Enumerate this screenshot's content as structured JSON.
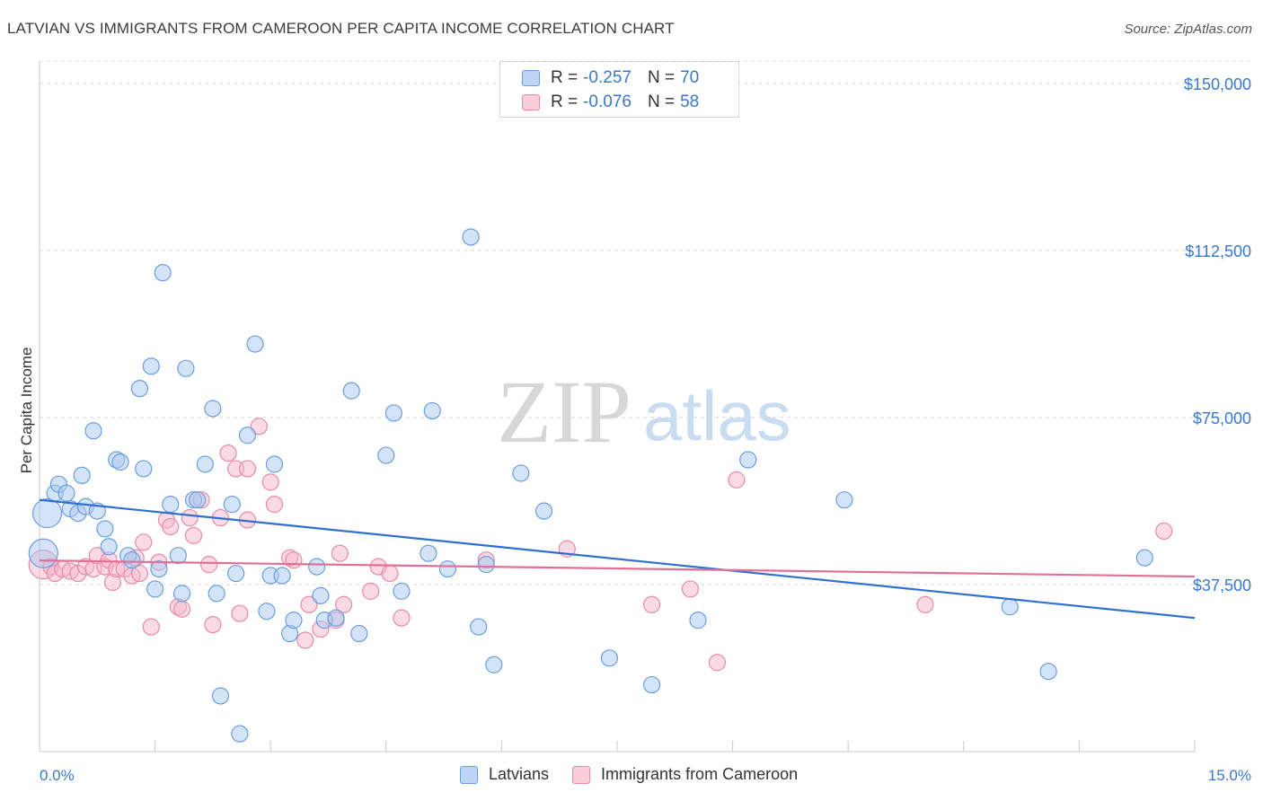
{
  "title": "LATVIAN VS IMMIGRANTS FROM CAMEROON PER CAPITA INCOME CORRELATION CHART",
  "source": "Source: ZipAtlas.com",
  "watermark": {
    "left": "ZIP",
    "right": "atlas"
  },
  "legend": {
    "rows": [
      {
        "r_label": "R =",
        "r_value": "-0.257",
        "n_label": "N =",
        "n_value": "70"
      },
      {
        "r_label": "R =",
        "r_value": "-0.076",
        "n_label": "N =",
        "n_value": "58"
      }
    ]
  },
  "bottom_legend": [
    "Latvians",
    "Immigrants from Cameroon"
  ],
  "colors": {
    "blue_fill": "#a9c8f0",
    "blue_stroke": "#6a9fdd",
    "blue_line": "#2f6fd0",
    "pink_fill": "#f6b8cc",
    "pink_stroke": "#e88aa8",
    "pink_line": "#e0709a",
    "tick_text": "#3a78c9",
    "grid": "#d8d8d8"
  },
  "chart_data": {
    "type": "scatter",
    "title": "LATVIAN VS IMMIGRANTS FROM CAMEROON PER CAPITA INCOME CORRELATION CHART",
    "xlabel": "",
    "ylabel": "Per Capita Income",
    "xlim": [
      0,
      15
    ],
    "ylim": [
      0,
      155000
    ],
    "x_tick_labels": [
      "0.0%",
      "15.0%"
    ],
    "y_ticks": [
      37500,
      75000,
      112500,
      150000
    ],
    "y_tick_labels": [
      "$37,500",
      "$75,000",
      "$112,500",
      "$150,000"
    ],
    "grid": "horizontal dashed",
    "legend_position": "top-center",
    "series": [
      {
        "name": "Latvians",
        "r": -0.257,
        "n": 70,
        "trend": {
          "x": [
            0,
            15
          ],
          "y": [
            56500,
            30000
          ]
        },
        "points": [
          {
            "x": 0.05,
            "y": 44500,
            "big": true
          },
          {
            "x": 0.1,
            "y": 53500,
            "big": true
          },
          {
            "x": 0.2,
            "y": 58000
          },
          {
            "x": 0.25,
            "y": 60000
          },
          {
            "x": 0.35,
            "y": 58000
          },
          {
            "x": 0.4,
            "y": 54500
          },
          {
            "x": 0.5,
            "y": 53500
          },
          {
            "x": 0.55,
            "y": 62000
          },
          {
            "x": 0.6,
            "y": 55000
          },
          {
            "x": 0.7,
            "y": 72000
          },
          {
            "x": 0.75,
            "y": 54000
          },
          {
            "x": 0.85,
            "y": 50000
          },
          {
            "x": 0.9,
            "y": 46000
          },
          {
            "x": 1.0,
            "y": 65500
          },
          {
            "x": 1.05,
            "y": 65000
          },
          {
            "x": 1.15,
            "y": 44000
          },
          {
            "x": 1.2,
            "y": 43000
          },
          {
            "x": 1.3,
            "y": 81500
          },
          {
            "x": 1.35,
            "y": 63500
          },
          {
            "x": 1.45,
            "y": 86500
          },
          {
            "x": 1.5,
            "y": 36500
          },
          {
            "x": 1.55,
            "y": 41000
          },
          {
            "x": 1.6,
            "y": 107500
          },
          {
            "x": 1.7,
            "y": 55500
          },
          {
            "x": 1.8,
            "y": 44000
          },
          {
            "x": 1.85,
            "y": 35500
          },
          {
            "x": 1.9,
            "y": 86000
          },
          {
            "x": 2.0,
            "y": 56500
          },
          {
            "x": 2.05,
            "y": 56500
          },
          {
            "x": 2.15,
            "y": 64500
          },
          {
            "x": 2.25,
            "y": 77000
          },
          {
            "x": 2.3,
            "y": 35500
          },
          {
            "x": 2.35,
            "y": 12500
          },
          {
            "x": 2.5,
            "y": 55500
          },
          {
            "x": 2.55,
            "y": 40000
          },
          {
            "x": 2.6,
            "y": 4000
          },
          {
            "x": 2.7,
            "y": 71000
          },
          {
            "x": 2.8,
            "y": 91500
          },
          {
            "x": 2.95,
            "y": 31500
          },
          {
            "x": 3.0,
            "y": 39500
          },
          {
            "x": 3.05,
            "y": 64500
          },
          {
            "x": 3.15,
            "y": 39500
          },
          {
            "x": 3.25,
            "y": 26500
          },
          {
            "x": 3.3,
            "y": 29500
          },
          {
            "x": 3.6,
            "y": 41500
          },
          {
            "x": 3.65,
            "y": 35000
          },
          {
            "x": 3.7,
            "y": 29500
          },
          {
            "x": 3.85,
            "y": 30000
          },
          {
            "x": 4.05,
            "y": 81000
          },
          {
            "x": 4.15,
            "y": 26500
          },
          {
            "x": 4.5,
            "y": 66500
          },
          {
            "x": 4.6,
            "y": 76000
          },
          {
            "x": 4.7,
            "y": 36000
          },
          {
            "x": 5.05,
            "y": 44500
          },
          {
            "x": 5.1,
            "y": 76500
          },
          {
            "x": 5.3,
            "y": 41000
          },
          {
            "x": 5.6,
            "y": 115500
          },
          {
            "x": 5.7,
            "y": 28000
          },
          {
            "x": 5.8,
            "y": 42000
          },
          {
            "x": 5.9,
            "y": 19500
          },
          {
            "x": 6.25,
            "y": 62500
          },
          {
            "x": 6.55,
            "y": 54000
          },
          {
            "x": 7.4,
            "y": 21000
          },
          {
            "x": 7.95,
            "y": 15000
          },
          {
            "x": 8.55,
            "y": 29500
          },
          {
            "x": 9.2,
            "y": 65500
          },
          {
            "x": 10.45,
            "y": 56500
          },
          {
            "x": 12.6,
            "y": 32500
          },
          {
            "x": 13.1,
            "y": 18000
          },
          {
            "x": 14.35,
            "y": 43500
          }
        ]
      },
      {
        "name": "Immigrants from Cameroon",
        "r": -0.076,
        "n": 58,
        "trend": {
          "x": [
            0,
            15
          ],
          "y": [
            42900,
            39300
          ]
        },
        "points": [
          {
            "x": 0.05,
            "y": 42000,
            "big": true
          },
          {
            "x": 0.15,
            "y": 41500
          },
          {
            "x": 0.2,
            "y": 40000
          },
          {
            "x": 0.3,
            "y": 41000
          },
          {
            "x": 0.4,
            "y": 40500
          },
          {
            "x": 0.5,
            "y": 40000
          },
          {
            "x": 0.6,
            "y": 41500
          },
          {
            "x": 0.7,
            "y": 41000
          },
          {
            "x": 0.75,
            "y": 44000
          },
          {
            "x": 0.85,
            "y": 41500
          },
          {
            "x": 0.9,
            "y": 43000
          },
          {
            "x": 0.95,
            "y": 38000
          },
          {
            "x": 1.0,
            "y": 41000
          },
          {
            "x": 1.1,
            "y": 41000
          },
          {
            "x": 1.2,
            "y": 39500
          },
          {
            "x": 1.25,
            "y": 43500
          },
          {
            "x": 1.3,
            "y": 40000
          },
          {
            "x": 1.35,
            "y": 47000
          },
          {
            "x": 1.45,
            "y": 28000
          },
          {
            "x": 1.55,
            "y": 42500
          },
          {
            "x": 1.65,
            "y": 52000
          },
          {
            "x": 1.7,
            "y": 50500
          },
          {
            "x": 1.8,
            "y": 32500
          },
          {
            "x": 1.85,
            "y": 32000
          },
          {
            "x": 1.95,
            "y": 52500
          },
          {
            "x": 2.0,
            "y": 48500
          },
          {
            "x": 2.1,
            "y": 56500
          },
          {
            "x": 2.2,
            "y": 42000
          },
          {
            "x": 2.25,
            "y": 28500
          },
          {
            "x": 2.35,
            "y": 52500
          },
          {
            "x": 2.45,
            "y": 67000
          },
          {
            "x": 2.55,
            "y": 63500
          },
          {
            "x": 2.6,
            "y": 31000
          },
          {
            "x": 2.7,
            "y": 52000
          },
          {
            "x": 2.7,
            "y": 63500
          },
          {
            "x": 2.85,
            "y": 73000
          },
          {
            "x": 3.0,
            "y": 60500
          },
          {
            "x": 3.05,
            "y": 55500
          },
          {
            "x": 3.25,
            "y": 43500
          },
          {
            "x": 3.3,
            "y": 43000
          },
          {
            "x": 3.45,
            "y": 25000
          },
          {
            "x": 3.5,
            "y": 33000
          },
          {
            "x": 3.65,
            "y": 27500
          },
          {
            "x": 3.85,
            "y": 29500
          },
          {
            "x": 3.9,
            "y": 44500
          },
          {
            "x": 3.95,
            "y": 33000
          },
          {
            "x": 4.3,
            "y": 36000
          },
          {
            "x": 4.4,
            "y": 41500
          },
          {
            "x": 4.55,
            "y": 40000
          },
          {
            "x": 4.7,
            "y": 30000
          },
          {
            "x": 5.8,
            "y": 43000
          },
          {
            "x": 6.85,
            "y": 45500
          },
          {
            "x": 7.95,
            "y": 33000
          },
          {
            "x": 8.45,
            "y": 36500
          },
          {
            "x": 8.8,
            "y": 20000
          },
          {
            "x": 9.05,
            "y": 61000
          },
          {
            "x": 11.5,
            "y": 33000
          },
          {
            "x": 14.6,
            "y": 49500
          }
        ]
      }
    ]
  }
}
